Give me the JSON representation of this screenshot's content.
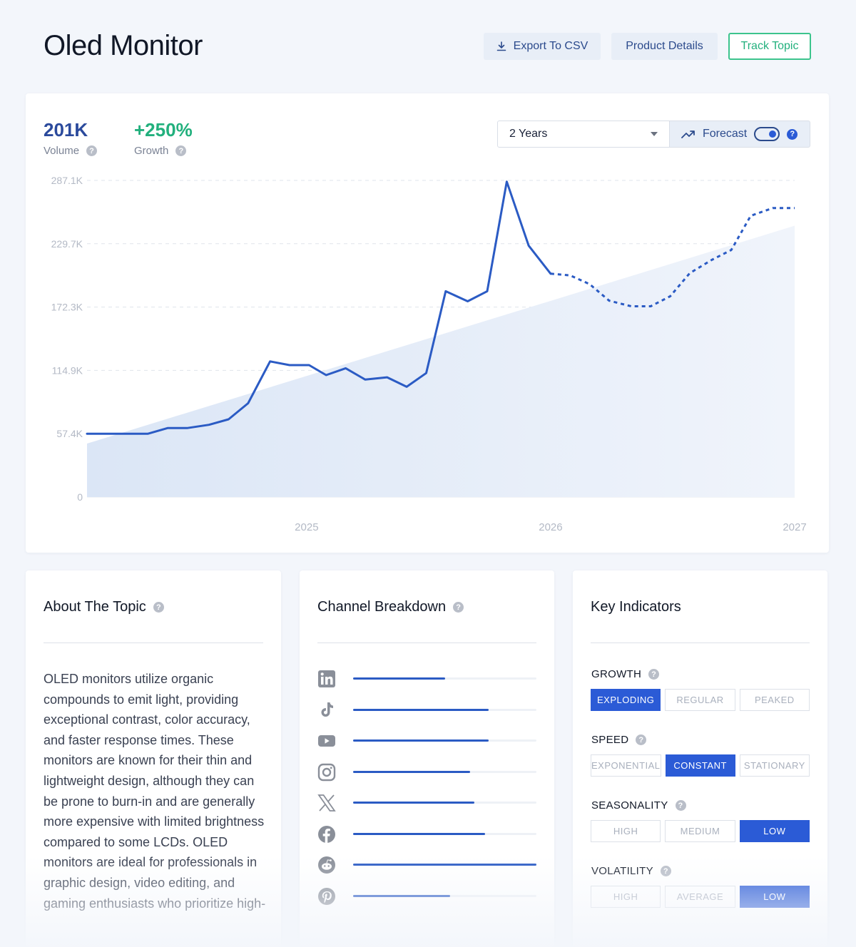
{
  "header": {
    "title": "Oled Monitor",
    "export_label": "Export To CSV",
    "details_label": "Product Details",
    "track_label": "Track Topic"
  },
  "stats": {
    "volume_value": "201K",
    "volume_label": "Volume",
    "growth_value": "+250%",
    "growth_label": "Growth"
  },
  "controls": {
    "range_value": "2 Years",
    "forecast_label": "Forecast",
    "forecast_on": true
  },
  "colors": {
    "accent": "#2b5bc4",
    "growth_green": "#22b07d",
    "volume_blue": "#2b4a9c",
    "trend_fill": "#dbe6f6"
  },
  "chart_data": {
    "type": "line",
    "y_ticks": [
      "287.1K",
      "229.7K",
      "172.3K",
      "114.9K",
      "57.4K",
      "0"
    ],
    "x_ticks": [
      "2025",
      "2026",
      "2027"
    ],
    "ylim": [
      0,
      287100
    ],
    "xlim": [
      2024.1,
      2027.0
    ],
    "grid": true,
    "series": [
      {
        "kind": "actual",
        "x": [
          2024.1,
          2024.18,
          2024.26,
          2024.35,
          2024.43,
          2024.51,
          2024.6,
          2024.68,
          2024.76,
          2024.85,
          2024.93,
          2025.01,
          2025.08,
          2025.16,
          2025.24,
          2025.33,
          2025.41,
          2025.49,
          2025.57,
          2025.66,
          2025.74,
          2025.82,
          2025.91,
          2026.0
        ],
        "y": [
          57400,
          57400,
          57400,
          57400,
          62500,
          62500,
          65500,
          70500,
          85000,
          123000,
          119600,
          119600,
          110600,
          116800,
          106500,
          108600,
          100000,
          112400,
          186600,
          177500,
          186600,
          286000,
          228000,
          202500
        ]
      },
      {
        "kind": "forecast",
        "x": [
          2026.0,
          2026.08,
          2026.16,
          2026.24,
          2026.33,
          2026.41,
          2026.49,
          2026.57,
          2026.66,
          2026.74,
          2026.82,
          2026.91,
          2027.0
        ],
        "y": [
          202500,
          201000,
          193000,
          178000,
          173000,
          173000,
          182000,
          203000,
          215000,
          224000,
          255000,
          262000,
          262000
        ]
      },
      {
        "kind": "trend",
        "x": [
          2024.1,
          2027.0
        ],
        "y": [
          48500,
          246000
        ]
      }
    ]
  },
  "about": {
    "title": "About The Topic",
    "text": "OLED monitors utilize organic compounds to emit light, providing exceptional contrast, color accuracy, and faster response times. These monitors are known for their thin and lightweight design, although they can be prone to burn-in and are generally more expensive with limited brightness compared to some LCDs. OLED monitors are ideal for professionals in graphic design, video editing, and gaming enthusiasts who prioritize high-"
  },
  "channels": {
    "title": "Channel Breakdown",
    "items": [
      {
        "icon": "linkedin-icon",
        "value": 0.5
      },
      {
        "icon": "tiktok-icon",
        "value": 0.74
      },
      {
        "icon": "youtube-icon",
        "value": 0.74
      },
      {
        "icon": "instagram-icon",
        "value": 0.64
      },
      {
        "icon": "x-icon",
        "value": 0.66
      },
      {
        "icon": "facebook-icon",
        "value": 0.72
      },
      {
        "icon": "reddit-icon",
        "value": 1.0
      },
      {
        "icon": "pinterest-icon",
        "value": 0.53
      }
    ]
  },
  "indicators": {
    "title": "Key Indicators",
    "groups": [
      {
        "label": "GROWTH",
        "options": [
          "EXPLODING",
          "REGULAR",
          "PEAKED"
        ],
        "selected": 0
      },
      {
        "label": "SPEED",
        "options": [
          "EXPONENTIAL",
          "CONSTANT",
          "STATIONARY"
        ],
        "selected": 1
      },
      {
        "label": "SEASONALITY",
        "options": [
          "HIGH",
          "MEDIUM",
          "LOW"
        ],
        "selected": 2
      },
      {
        "label": "VOLATILITY",
        "options": [
          "HIGH",
          "AVERAGE",
          "LOW"
        ],
        "selected": 2
      }
    ]
  }
}
